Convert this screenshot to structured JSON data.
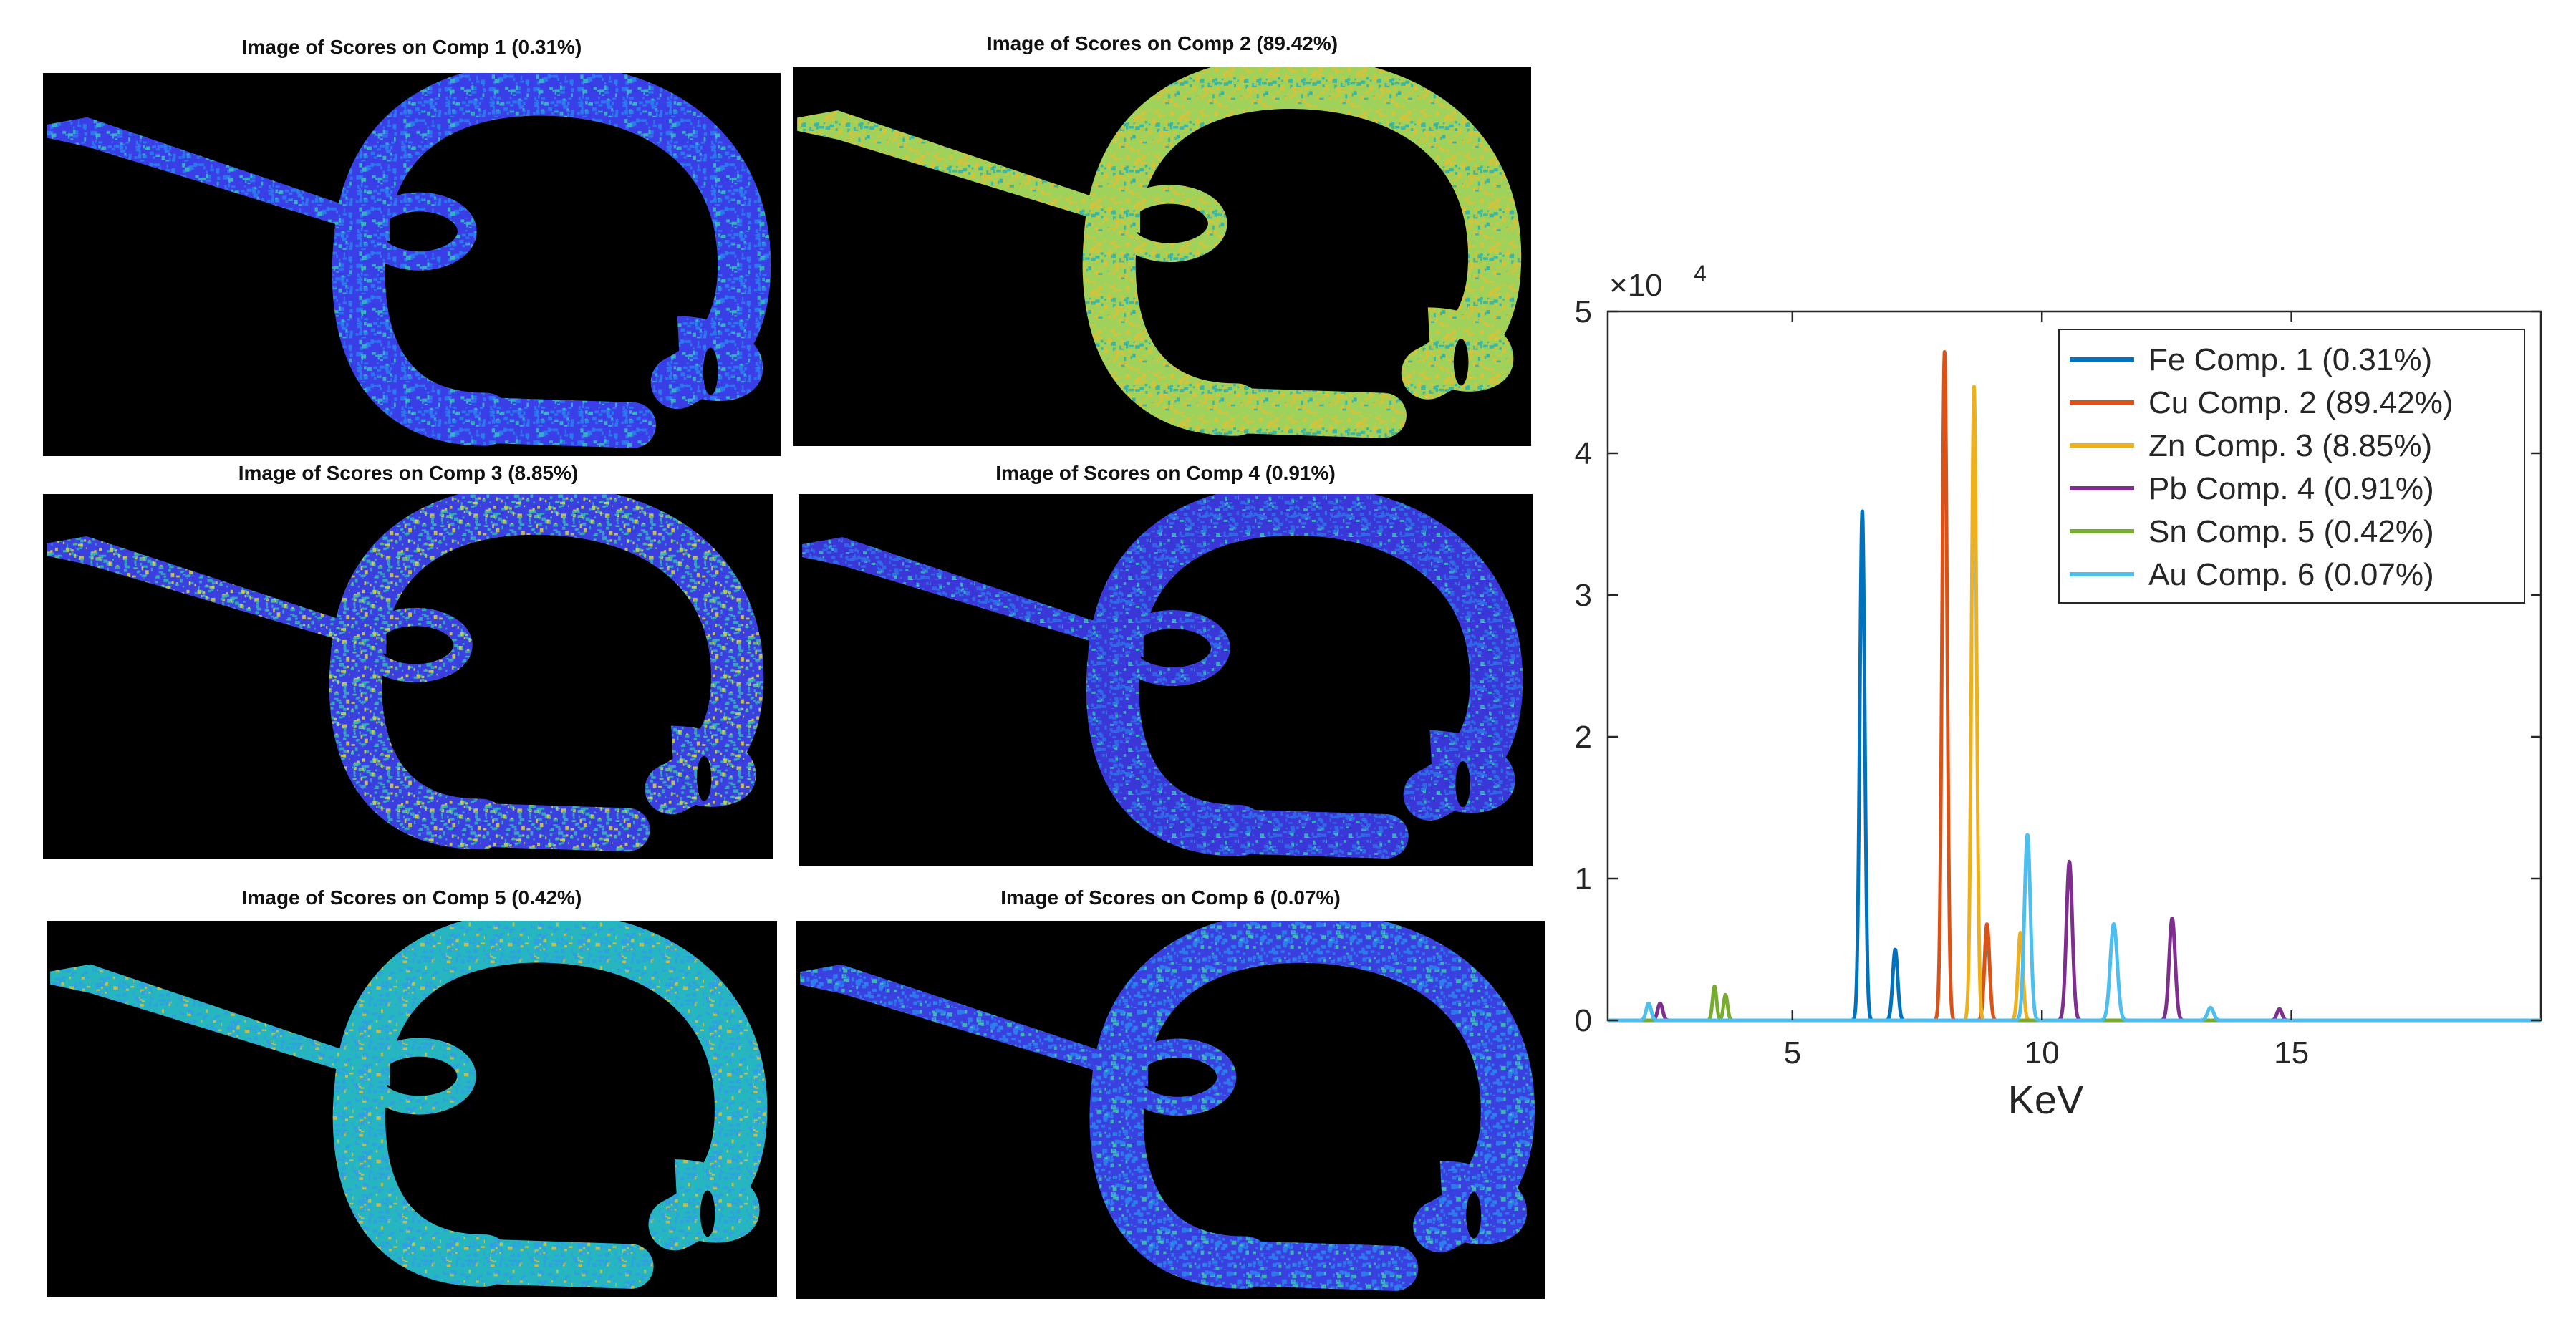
{
  "score_images": [
    {
      "title": "Image of Scores on Comp 1 (0.31%)",
      "colormap": [
        "#3a3ee6",
        "#2a7ff0",
        "#36c2c0"
      ]
    },
    {
      "title": "Image of Scores on Comp 2 (89.42%)",
      "colormap": [
        "#9fd25a",
        "#d9c23a",
        "#2ab3b0"
      ]
    },
    {
      "title": "Image of Scores on Comp 3 (8.85%)",
      "colormap": [
        "#3b3fe0",
        "#35b6b6",
        "#d8d640"
      ]
    },
    {
      "title": "Image of Scores on Comp 4 (0.91%)",
      "colormap": [
        "#3a36d8",
        "#2f6fe8",
        "#3ac0b8"
      ]
    },
    {
      "title": "Image of Scores on Comp 5 (0.42%)",
      "colormap": [
        "#25b6c0",
        "#2f9ee6",
        "#d2c63e"
      ]
    },
    {
      "title": "Image of Scores on Comp 6 (0.07%)",
      "colormap": [
        "#3a40e0",
        "#2b82ee",
        "#40c8b0"
      ]
    }
  ],
  "chart_data": {
    "type": "line",
    "title": "",
    "xlabel": "KeV",
    "ylabel": "",
    "exponent_label": "×10",
    "exponent_power": "4",
    "xlim": [
      1.3,
      20
    ],
    "ylim": [
      0,
      5
    ],
    "xticks": [
      5,
      10,
      15
    ],
    "yticks": [
      0,
      1,
      2,
      3,
      4,
      5
    ],
    "grid": false,
    "legend_position": "top-right",
    "series": [
      {
        "name": "Fe Comp. 1 (0.31%)",
        "color": "#0072bd",
        "peaks": [
          [
            6.4,
            3.6,
            0.05
          ],
          [
            7.06,
            0.5,
            0.05
          ]
        ]
      },
      {
        "name": "Cu Comp. 2 (89.42%)",
        "color": "#d95319",
        "peaks": [
          [
            8.05,
            4.72,
            0.05
          ],
          [
            8.9,
            0.68,
            0.05
          ]
        ]
      },
      {
        "name": "Zn Comp. 3 (8.85%)",
        "color": "#edb120",
        "peaks": [
          [
            8.64,
            4.47,
            0.05
          ],
          [
            9.57,
            0.62,
            0.05
          ]
        ]
      },
      {
        "name": "Pb Comp. 4 (0.91%)",
        "color": "#7e2f8e",
        "peaks": [
          [
            2.35,
            0.12,
            0.05
          ],
          [
            10.55,
            1.12,
            0.06
          ],
          [
            12.61,
            0.72,
            0.06
          ],
          [
            14.76,
            0.08,
            0.05
          ]
        ]
      },
      {
        "name": "Sn Comp. 5 (0.42%)",
        "color": "#77ac30",
        "peaks": [
          [
            3.44,
            0.24,
            0.04
          ],
          [
            3.66,
            0.18,
            0.04
          ]
        ]
      },
      {
        "name": "Au Comp. 6 (0.07%)",
        "color": "#4dbeee",
        "peaks": [
          [
            2.12,
            0.12,
            0.05
          ],
          [
            9.71,
            1.31,
            0.06
          ],
          [
            11.44,
            0.68,
            0.07
          ],
          [
            13.38,
            0.09,
            0.06
          ]
        ]
      }
    ]
  }
}
